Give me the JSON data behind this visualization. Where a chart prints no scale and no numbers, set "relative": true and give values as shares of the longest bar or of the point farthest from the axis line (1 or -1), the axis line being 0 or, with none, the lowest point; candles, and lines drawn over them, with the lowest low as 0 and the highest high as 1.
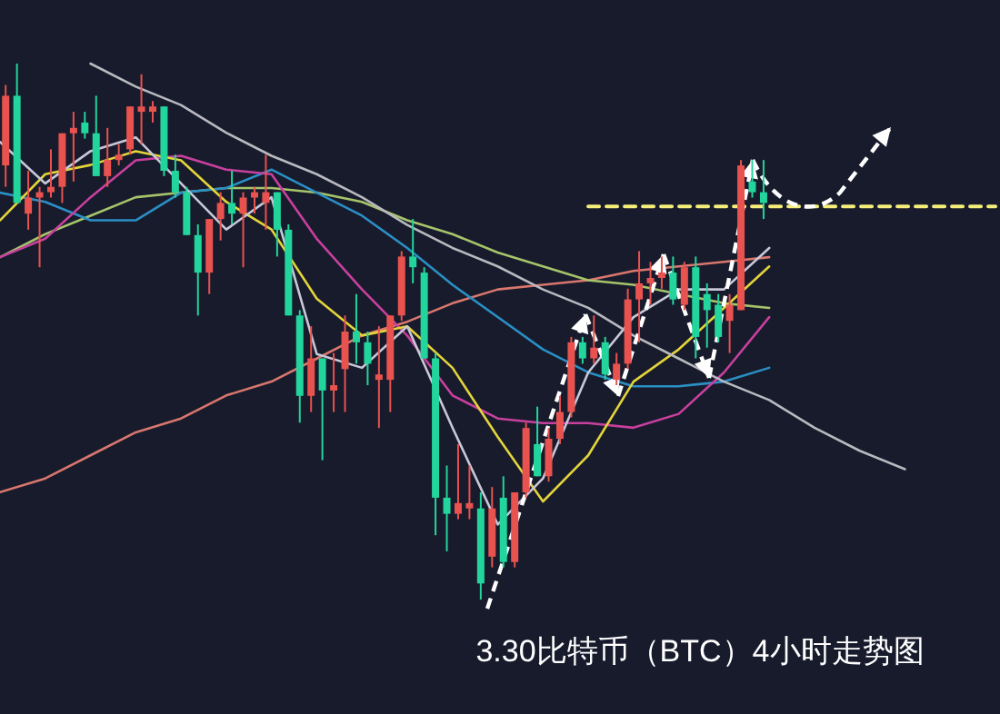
{
  "chart_data": [
    {
      "type": "candlestick",
      "title": "3.30比特币（BTC）4小时走势图",
      "relative": true,
      "categories": [
        null,
        null,
        null,
        null,
        null,
        null,
        null,
        null,
        null,
        null,
        null,
        null,
        null,
        null,
        null,
        null,
        null,
        null,
        null,
        null,
        null,
        null,
        null,
        null,
        null,
        null,
        null,
        null,
        null,
        null,
        null,
        null,
        null,
        null,
        null,
        null,
        null,
        null,
        null,
        null,
        null,
        null,
        null,
        null,
        null,
        null,
        null,
        null,
        null,
        null,
        null,
        null,
        null,
        null,
        null,
        null,
        null,
        null,
        null,
        null,
        null,
        null,
        null,
        null,
        null,
        null,
        null,
        null
      ],
      "ohlc": [
        [
          0.81,
          0.96,
          0.77,
          0.94
        ],
        [
          0.94,
          1.0,
          0.74,
          0.74
        ],
        [
          0.72,
          0.8,
          0.69,
          0.75
        ],
        [
          0.75,
          0.77,
          0.62,
          0.76
        ],
        [
          0.76,
          0.84,
          0.75,
          0.77
        ],
        [
          0.77,
          0.87,
          0.74,
          0.87
        ],
        [
          0.87,
          0.91,
          0.78,
          0.88
        ],
        [
          0.89,
          0.91,
          0.86,
          0.87
        ],
        [
          0.87,
          0.94,
          0.79,
          0.79
        ],
        [
          0.79,
          0.88,
          0.77,
          0.82
        ],
        [
          0.82,
          0.85,
          0.81,
          0.83
        ],
        [
          0.84,
          0.92,
          0.83,
          0.92
        ],
        [
          0.91,
          0.98,
          0.85,
          0.92
        ],
        [
          0.91,
          0.93,
          0.89,
          0.92
        ],
        [
          0.92,
          0.92,
          0.79,
          0.8
        ],
        [
          0.8,
          0.83,
          0.75,
          0.76
        ],
        [
          0.76,
          0.77,
          0.68,
          0.68
        ],
        [
          0.68,
          0.7,
          0.53,
          0.61
        ],
        [
          0.61,
          0.71,
          0.57,
          0.71
        ],
        [
          0.71,
          0.76,
          0.67,
          0.74
        ],
        [
          0.74,
          0.8,
          0.7,
          0.72
        ],
        [
          0.72,
          0.76,
          0.62,
          0.75
        ],
        [
          0.75,
          0.77,
          0.72,
          0.76
        ],
        [
          0.74,
          0.83,
          0.69,
          0.76
        ],
        [
          0.76,
          0.76,
          0.64,
          0.69
        ],
        [
          0.69,
          0.7,
          0.53,
          0.53
        ],
        [
          0.53,
          0.54,
          0.33,
          0.38
        ],
        [
          0.38,
          0.51,
          0.35,
          0.45
        ],
        [
          0.45,
          0.45,
          0.26,
          0.39
        ],
        [
          0.39,
          0.46,
          0.35,
          0.4
        ],
        [
          0.43,
          0.53,
          0.35,
          0.5
        ],
        [
          0.5,
          0.57,
          0.44,
          0.48
        ],
        [
          0.48,
          0.5,
          0.4,
          0.44
        ],
        [
          0.41,
          0.51,
          0.32,
          0.42
        ],
        [
          0.41,
          0.53,
          0.35,
          0.53
        ],
        [
          0.53,
          0.65,
          0.52,
          0.64
        ],
        [
          0.64,
          0.71,
          0.59,
          0.62
        ],
        [
          0.61,
          0.62,
          0.45,
          0.45
        ],
        [
          0.45,
          0.46,
          0.12,
          0.19
        ],
        [
          0.19,
          0.25,
          0.09,
          0.16
        ],
        [
          0.16,
          0.29,
          0.15,
          0.18
        ],
        [
          0.17,
          0.25,
          0.15,
          0.18
        ],
        [
          0.17,
          0.2,
          0.0,
          0.03
        ],
        [
          0.08,
          0.21,
          0.06,
          0.17
        ],
        [
          0.19,
          0.23,
          0.06,
          0.07
        ],
        [
          0.07,
          0.2,
          0.06,
          0.2
        ],
        [
          0.2,
          0.33,
          0.19,
          0.32
        ],
        [
          0.29,
          0.36,
          0.23,
          0.23
        ],
        [
          0.23,
          0.32,
          0.22,
          0.3
        ],
        [
          0.3,
          0.38,
          0.29,
          0.35
        ],
        [
          0.35,
          0.49,
          0.34,
          0.48
        ],
        [
          0.48,
          0.49,
          0.44,
          0.45
        ],
        [
          0.45,
          0.53,
          0.44,
          0.47
        ],
        [
          0.48,
          0.49,
          0.41,
          0.42
        ],
        [
          0.41,
          0.46,
          0.4,
          0.44
        ],
        [
          0.44,
          0.58,
          0.43,
          0.56
        ],
        [
          0.56,
          0.65,
          0.48,
          0.59
        ],
        [
          0.59,
          0.63,
          0.55,
          0.6
        ],
        [
          0.6,
          0.64,
          0.58,
          0.61
        ],
        [
          0.61,
          0.64,
          0.55,
          0.56
        ],
        [
          0.55,
          0.63,
          0.54,
          0.62
        ],
        [
          0.62,
          0.64,
          0.45,
          0.49
        ],
        [
          0.57,
          0.59,
          0.47,
          0.54
        ],
        [
          0.55,
          0.57,
          0.48,
          0.49
        ],
        [
          0.52,
          0.57,
          0.46,
          0.55
        ],
        [
          0.54,
          0.82,
          0.54,
          0.81
        ],
        [
          0.78,
          0.82,
          0.75,
          0.76
        ],
        [
          0.76,
          0.82,
          0.71,
          0.74
        ]
      ],
      "colors": [
        "#e8524f",
        "#22d59c",
        "#e8524f",
        "#e8524f",
        "#e8524f",
        "#e8524f",
        "#e8524f",
        "#22d59c",
        "#22d59c",
        "#e8524f",
        "#e8524f",
        "#e8524f",
        "#e8524f",
        "#e8524f",
        "#22d59c",
        "#22d59c",
        "#22d59c",
        "#22d59c",
        "#e8524f",
        "#e8524f",
        "#22d59c",
        "#e8524f",
        "#e8524f",
        "#e8524f",
        "#22d59c",
        "#22d59c",
        "#22d59c",
        "#e8524f",
        "#22d59c",
        "#e8524f",
        "#e8524f",
        "#22d59c",
        "#22d59c",
        "#e8524f",
        "#e8524f",
        "#e8524f",
        "#22d59c",
        "#22d59c",
        "#22d59c",
        "#22d59c",
        "#e8524f",
        "#e8524f",
        "#22d59c",
        "#e8524f",
        "#22d59c",
        "#e8524f",
        "#e8524f",
        "#22d59c",
        "#e8524f",
        "#e8524f",
        "#e8524f",
        "#22d59c",
        "#e8524f",
        "#22d59c",
        "#e8524f",
        "#e8524f",
        "#e8524f",
        "#e8524f",
        "#e8524f",
        "#22d59c",
        "#e8524f",
        "#22d59c",
        "#22d59c",
        "#22d59c",
        "#e8524f",
        "#e8524f",
        "#22d59c",
        "#22d59c"
      ]
    },
    {
      "type": "line",
      "relative": true,
      "categories": [
        null,
        null,
        null,
        null,
        null,
        null,
        null,
        null,
        null,
        null,
        null,
        null,
        null,
        null,
        null,
        null,
        null,
        null,
        null,
        null,
        null,
        null,
        null
      ],
      "series": [
        {
          "color": "#d9776e",
          "values": [
            0.07,
            0.1,
            0.15,
            0.2,
            0.23,
            0.28,
            0.31,
            0.36,
            0.41,
            0.44,
            0.48,
            0.51,
            0.52,
            0.53,
            0.55,
            0.56,
            0.57,
            0.58,
            null,
            null,
            null,
            null,
            null
          ]
        },
        {
          "color": "#a6c46a",
          "values": [
            0.58,
            0.63,
            0.67,
            0.71,
            0.72,
            0.73,
            0.73,
            0.72,
            0.7,
            0.66,
            0.63,
            0.59,
            0.56,
            0.53,
            0.52,
            0.5,
            0.48,
            0.47,
            null,
            null,
            null,
            null,
            null
          ]
        },
        {
          "color": "#2a8fc4",
          "values": [
            0.72,
            0.7,
            0.66,
            0.66,
            0.72,
            0.73,
            0.77,
            0.72,
            0.67,
            0.6,
            0.52,
            0.45,
            0.38,
            0.33,
            0.3,
            0.3,
            0.31,
            0.34,
            null,
            null,
            null,
            null,
            null
          ]
        },
        {
          "color": "#c8409e",
          "values": [
            0.58,
            0.62,
            0.71,
            0.79,
            0.8,
            0.77,
            0.76,
            0.62,
            0.51,
            0.41,
            0.28,
            0.23,
            0.22,
            0.22,
            0.21,
            0.24,
            0.33,
            0.45,
            null,
            null,
            null,
            null,
            null
          ]
        },
        {
          "color": "#e3d43a",
          "values": [
            0.66,
            0.76,
            0.78,
            0.81,
            0.79,
            0.7,
            0.64,
            0.49,
            0.41,
            0.43,
            0.34,
            0.19,
            0.05,
            0.15,
            0.31,
            0.38,
            0.47,
            0.56,
            null,
            null,
            null,
            null,
            null
          ]
        },
        {
          "color": "#c8c8d8",
          "values": [
            0.83,
            0.74,
            0.81,
            0.84,
            0.74,
            0.64,
            0.71,
            0.37,
            0.34,
            0.43,
            0.21,
            0.0,
            0.1,
            0.33,
            0.45,
            0.51,
            0.51,
            0.6,
            null,
            null,
            null,
            null,
            null
          ]
        },
        {
          "color": "#b9b9c0",
          "values": [
            null,
            null,
            1.0,
            0.95,
            0.91,
            0.85,
            0.8,
            0.76,
            0.71,
            0.65,
            0.6,
            0.56,
            0.51,
            0.47,
            0.41,
            0.36,
            0.31,
            0.27,
            0.21,
            0.16,
            0.12,
            null,
            null
          ]
        },
        {
          "color": "#f5ee7a",
          "line_style": "dashed",
          "values": [
            null,
            null,
            null,
            null,
            null,
            null,
            null,
            null,
            null,
            null,
            null,
            null,
            null,
            0.69,
            0.69,
            0.69,
            0.69,
            0.69,
            0.69,
            0.69,
            0.69,
            0.69,
            0.69
          ]
        }
      ]
    }
  ]
}
